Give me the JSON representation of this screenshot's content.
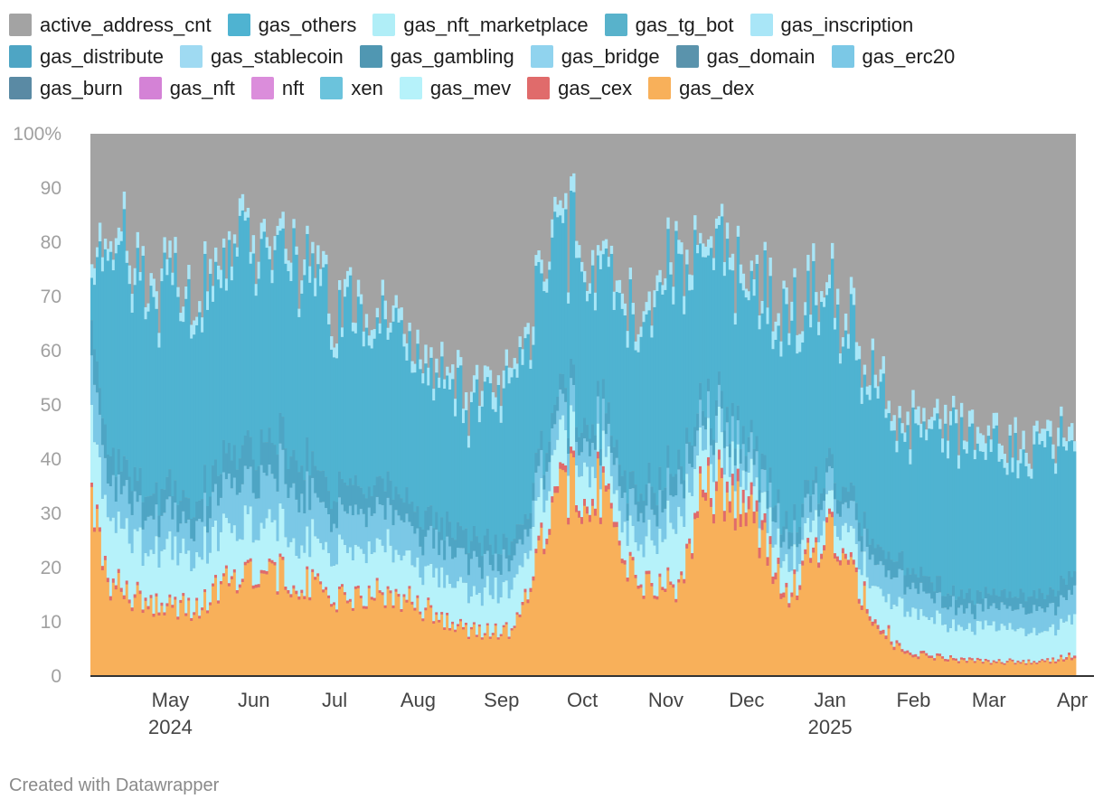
{
  "footer": "Created with Datawrapper",
  "chart_data": {
    "type": "area",
    "stacked": true,
    "normalized": true,
    "y_unit_suffix": "%",
    "y_ticks": [
      {
        "value": 0,
        "label": "0"
      },
      {
        "value": 10,
        "label": "10"
      },
      {
        "value": 20,
        "label": "20"
      },
      {
        "value": 30,
        "label": "30"
      },
      {
        "value": 40,
        "label": "40"
      },
      {
        "value": 50,
        "label": "50"
      },
      {
        "value": 60,
        "label": "60"
      },
      {
        "value": 70,
        "label": "70"
      },
      {
        "value": 80,
        "label": "80"
      },
      {
        "value": 90,
        "label": "90"
      },
      {
        "value": 100,
        "label": "100%"
      }
    ],
    "ylim": [
      0,
      100
    ],
    "xlim": [
      "2024-04-06",
      "2025-04-07"
    ],
    "x_ticks": [
      {
        "date": "2024-05-01",
        "label": "May",
        "year": "2024"
      },
      {
        "date": "2024-06-01",
        "label": "Jun"
      },
      {
        "date": "2024-07-01",
        "label": "Jul"
      },
      {
        "date": "2024-08-01",
        "label": "Aug"
      },
      {
        "date": "2024-09-01",
        "label": "Sep"
      },
      {
        "date": "2024-10-01",
        "label": "Oct"
      },
      {
        "date": "2024-11-01",
        "label": "Nov"
      },
      {
        "date": "2024-12-01",
        "label": "Dec"
      },
      {
        "date": "2025-01-01",
        "label": "Jan",
        "year": "2025"
      },
      {
        "date": "2025-02-01",
        "label": "Feb"
      },
      {
        "date": "2025-03-01",
        "label": "Mar"
      },
      {
        "date": "2025-04-01",
        "label": "Apr"
      }
    ],
    "legend_position": "top",
    "legend_rows": [
      [
        "active_address_cnt",
        "gas_others",
        "gas_nft_marketplace",
        "gas_tg_bot",
        "gas_inscription"
      ],
      [
        "gas_distribute",
        "gas_stablecoin",
        "gas_gambling",
        "gas_bridge",
        "gas_domain",
        "gas_erc20"
      ],
      [
        "gas_burn",
        "gas_nft",
        "nft",
        "xen",
        "gas_mev",
        "gas_cex",
        "gas_dex"
      ]
    ],
    "series": [
      {
        "name": "active_address_cnt",
        "color": "#a3a3a3"
      },
      {
        "name": "gas_others",
        "color": "#4fb3d1"
      },
      {
        "name": "gas_nft_marketplace",
        "color": "#b0eef7"
      },
      {
        "name": "gas_tg_bot",
        "color": "#58b2cb"
      },
      {
        "name": "gas_inscription",
        "color": "#a9e6f7"
      },
      {
        "name": "gas_distribute",
        "color": "#4ea5c4"
      },
      {
        "name": "gas_stablecoin",
        "color": "#9fdaf2"
      },
      {
        "name": "gas_gambling",
        "color": "#5097b2"
      },
      {
        "name": "gas_bridge",
        "color": "#90d3ee"
      },
      {
        "name": "gas_domain",
        "color": "#5a93ac"
      },
      {
        "name": "gas_erc20",
        "color": "#7bc8e6"
      },
      {
        "name": "gas_burn",
        "color": "#5a8aa4"
      },
      {
        "name": "gas_nft",
        "color": "#d482d6"
      },
      {
        "name": "nft",
        "color": "#db8ddb"
      },
      {
        "name": "xen",
        "color": "#6bc3dc"
      },
      {
        "name": "gas_mev",
        "color": "#b6f2fa"
      },
      {
        "name": "gas_cex",
        "color": "#e06b6b"
      },
      {
        "name": "gas_dex",
        "color": "#f8b05a"
      }
    ],
    "stack_order_bottom_to_top": [
      "gas_dex",
      "gas_cex",
      "gas_mev",
      "xen",
      "nft",
      "gas_nft",
      "gas_burn",
      "gas_erc20",
      "gas_domain",
      "gas_bridge",
      "gas_gambling",
      "gas_stablecoin",
      "gas_distribute",
      "gas_inscription",
      "gas_tg_bot",
      "gas_nft_marketplace",
      "gas_others",
      "active_address_cnt"
    ],
    "key_points": [
      {
        "date": "2024-04-06",
        "dex": 35,
        "cex": 0.8,
        "mev": 14,
        "mid": 18,
        "others": 8
      },
      {
        "date": "2024-04-12",
        "dex": 17,
        "cex": 0.8,
        "mev": 12,
        "mid": 12,
        "others": 38
      },
      {
        "date": "2024-04-25",
        "dex": 14,
        "cex": 0.6,
        "mev": 10,
        "mid": 11,
        "others": 40
      },
      {
        "date": "2024-05-15",
        "dex": 12,
        "cex": 0.5,
        "mev": 10,
        "mid": 10,
        "others": 34
      },
      {
        "date": "2024-06-01",
        "dex": 20,
        "cex": 0.6,
        "mev": 9,
        "mid": 15,
        "others": 38
      },
      {
        "date": "2024-06-20",
        "dex": 18,
        "cex": 0.6,
        "mev": 8,
        "mid": 16,
        "others": 36
      },
      {
        "date": "2024-07-05",
        "dex": 14,
        "cex": 0.5,
        "mev": 8,
        "mid": 12,
        "others": 32
      },
      {
        "date": "2024-07-25",
        "dex": 15,
        "cex": 0.5,
        "mev": 9,
        "mid": 11,
        "others": 30
      },
      {
        "date": "2024-08-05",
        "dex": 13,
        "cex": 0.5,
        "mev": 7,
        "mid": 10,
        "others": 28
      },
      {
        "date": "2024-08-25",
        "dex": 8,
        "cex": 0.4,
        "mev": 7,
        "mid": 10,
        "others": 24
      },
      {
        "date": "2024-09-10",
        "dex": 8,
        "cex": 0.4,
        "mev": 8,
        "mid": 8,
        "others": 28
      },
      {
        "date": "2024-09-25",
        "dex": 34,
        "cex": 1.2,
        "mev": 8,
        "mid": 8,
        "others": 30
      },
      {
        "date": "2024-10-10",
        "dex": 35,
        "cex": 1.3,
        "mev": 6,
        "mid": 8,
        "others": 28
      },
      {
        "date": "2024-10-25",
        "dex": 17,
        "cex": 0.6,
        "mev": 6,
        "mid": 10,
        "others": 30
      },
      {
        "date": "2024-11-10",
        "dex": 16,
        "cex": 0.6,
        "mev": 12,
        "mid": 10,
        "others": 38
      },
      {
        "date": "2024-11-20",
        "dex": 35,
        "cex": 1.5,
        "mev": 8,
        "mid": 7,
        "others": 28
      },
      {
        "date": "2024-12-05",
        "dex": 32,
        "cex": 2.5,
        "mev": 4,
        "mid": 7,
        "others": 28
      },
      {
        "date": "2024-12-20",
        "dex": 14,
        "cex": 0.8,
        "mev": 5,
        "mid": 7,
        "others": 38
      },
      {
        "date": "2025-01-05",
        "dex": 28,
        "cex": 1.0,
        "mev": 4,
        "mid": 7,
        "others": 32
      },
      {
        "date": "2025-01-20",
        "dex": 12,
        "cex": 0.8,
        "mev": 6,
        "mid": 8,
        "others": 30
      },
      {
        "date": "2025-02-01",
        "dex": 4,
        "cex": 0.5,
        "mev": 8,
        "mid": 8,
        "others": 24
      },
      {
        "date": "2025-02-20",
        "dex": 3,
        "cex": 0.4,
        "mev": 6,
        "mid": 6,
        "others": 28
      },
      {
        "date": "2025-03-10",
        "dex": 2.5,
        "cex": 0.3,
        "mev": 6,
        "mid": 6,
        "others": 26
      },
      {
        "date": "2025-03-25",
        "dex": 2.5,
        "cex": 0.3,
        "mev": 5,
        "mid": 7,
        "others": 26
      },
      {
        "date": "2025-04-07",
        "dex": 3.5,
        "cex": 0.5,
        "mev": 7,
        "mid": 8,
        "others": 24
      }
    ]
  }
}
